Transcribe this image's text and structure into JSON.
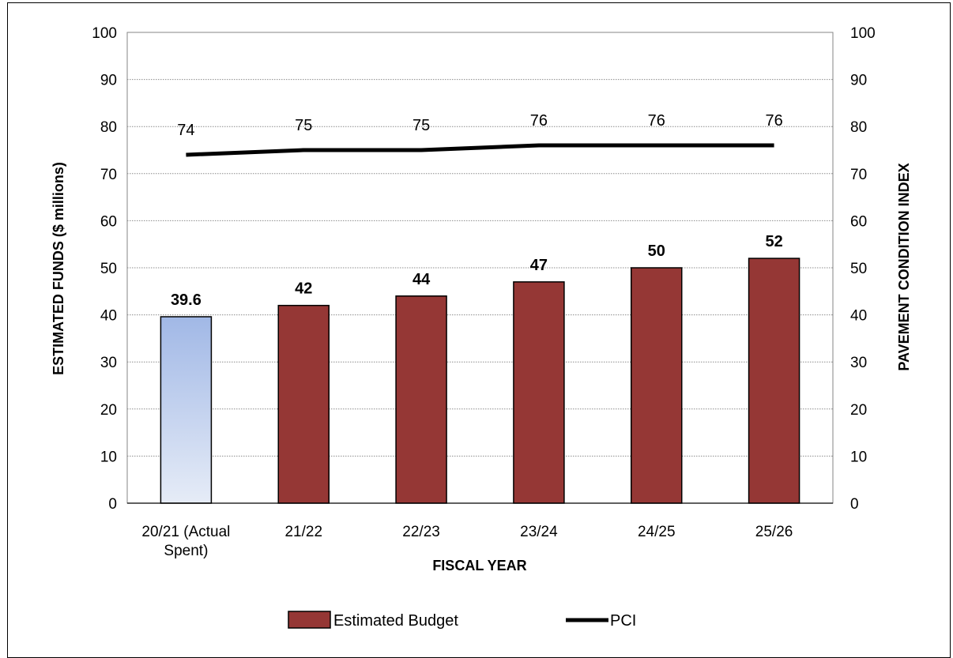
{
  "chart_data": {
    "type": "bar",
    "categories": [
      "20/21 (Actual Spent)",
      "21/22",
      "22/23",
      "23/24",
      "24/25",
      "25/26"
    ],
    "category_lines": [
      [
        "20/21 (Actual",
        "Spent)"
      ],
      [
        "21/22"
      ],
      [
        "22/23"
      ],
      [
        "23/24"
      ],
      [
        "24/25"
      ],
      [
        "25/26"
      ]
    ],
    "series": [
      {
        "name": "Estimated Budget",
        "axis": "left",
        "type": "bar",
        "values": [
          39.6,
          42,
          44,
          47,
          50,
          52
        ],
        "labels": [
          "39.6",
          "42",
          "44",
          "47",
          "50",
          "52"
        ],
        "color": "#953735",
        "first_bar_color": "#a6bde8"
      },
      {
        "name": "PCI",
        "axis": "right",
        "type": "line",
        "values": [
          74,
          75,
          75,
          76,
          76,
          76
        ],
        "labels": [
          "74",
          "75",
          "75",
          "76",
          "76",
          "76"
        ],
        "color": "#000000"
      }
    ],
    "xlabel": "FISCAL YEAR",
    "ylabel": "ESTIMATED FUNDS ($ millions)",
    "y2label": "PAVEMENT CONDITION INDEX",
    "ylim": [
      0,
      100
    ],
    "y2lim": [
      0,
      100
    ],
    "yticks": [
      "0",
      "10",
      "20",
      "30",
      "40",
      "50",
      "60",
      "70",
      "80",
      "90",
      "100"
    ],
    "grid": true,
    "legend": "bottom",
    "legend_entries": [
      "Estimated Budget",
      "PCI"
    ]
  }
}
